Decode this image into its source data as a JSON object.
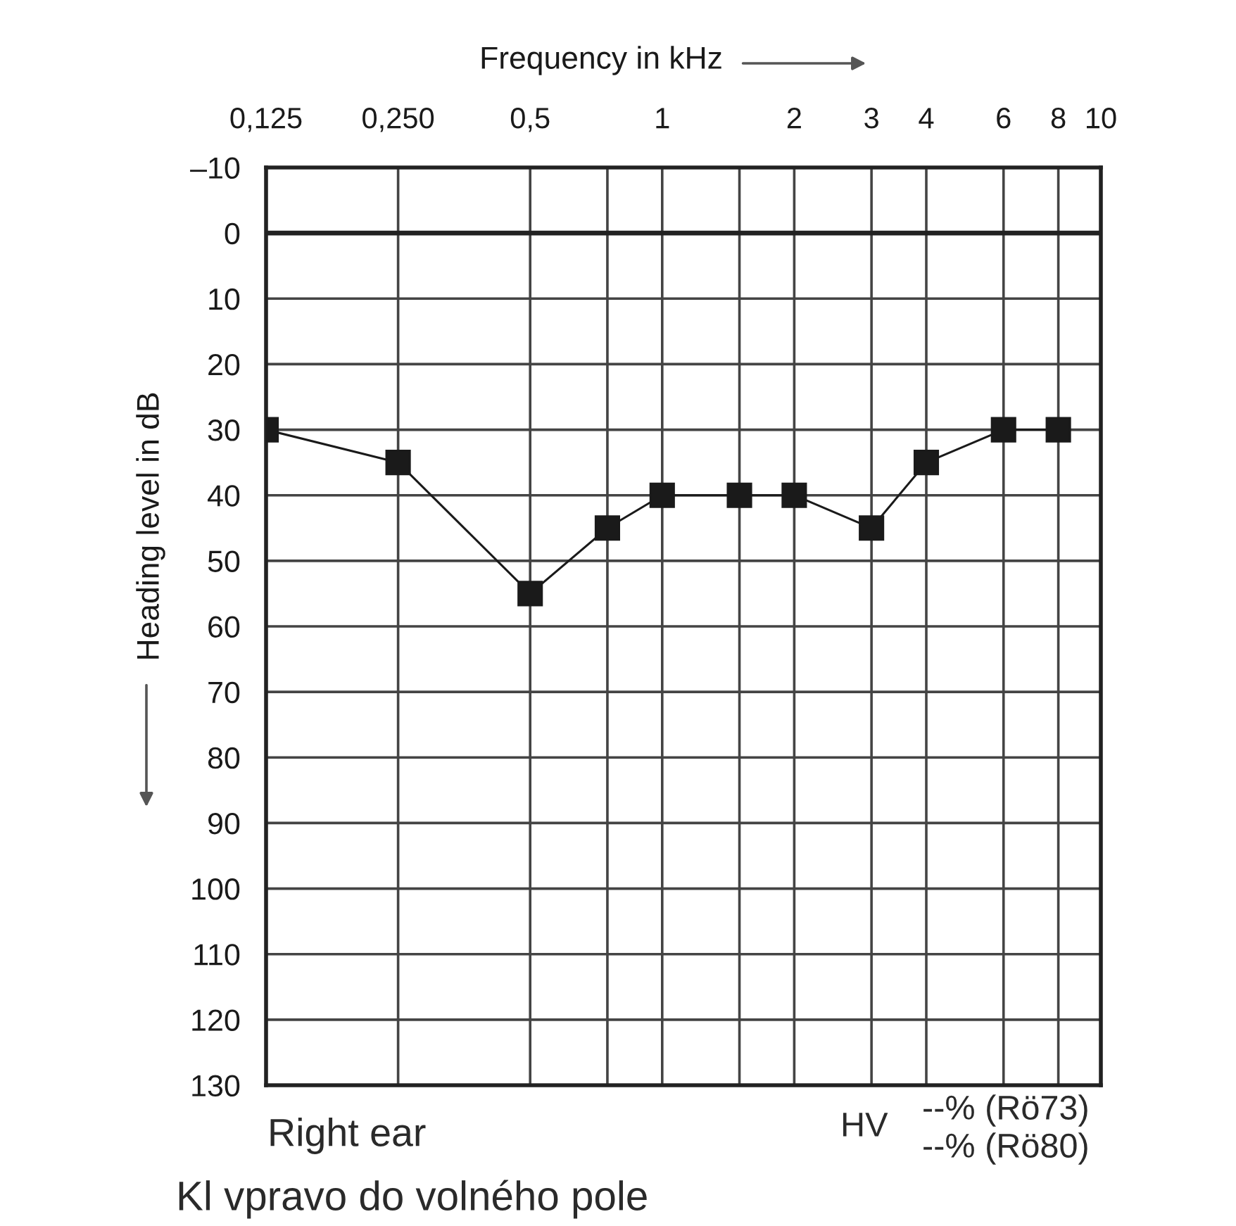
{
  "chart_data": {
    "type": "line",
    "title": "Frequency in kHz",
    "ylabel": "Heading level in dB",
    "x": [
      0.125,
      0.25,
      0.5,
      0.75,
      1,
      1.5,
      2,
      3,
      4,
      6,
      8
    ],
    "series": [
      {
        "color": "#1a1a1a",
        "values": [
          30,
          35,
          55,
          45,
          40,
          40,
          40,
          45,
          35,
          30,
          30
        ]
      }
    ],
    "log": "x",
    "xlim": [
      0.125,
      10
    ],
    "xticks": [
      {
        "value": 0.125,
        "label": "0,125"
      },
      {
        "value": 0.25,
        "label": "0,250"
      },
      {
        "value": 0.5,
        "label": "0,5"
      },
      {
        "value": 0.75,
        "label": null
      },
      1,
      {
        "value": 1.5,
        "label": null
      },
      2,
      3,
      4,
      6,
      8,
      10
    ],
    "ylim": [
      130,
      -10
    ],
    "yticks": [
      {
        "value": -10,
        "label": "–10"
      },
      0,
      10,
      20,
      30,
      40,
      50,
      60,
      70,
      80,
      90,
      100,
      110,
      120,
      130
    ],
    "grid": true,
    "marker": "square",
    "line_style": "solid",
    "ref_lines": [
      {
        "axis": "y",
        "value": 0,
        "color": "#222222"
      }
    ],
    "annotations": [
      "Right ear",
      "HV",
      "--% (Rö73)",
      "--% (Rö80)",
      "Kl vpravo do volného pole"
    ]
  }
}
